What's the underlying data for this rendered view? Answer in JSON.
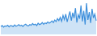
{
  "chart_data": {
    "type": "area",
    "color": "#3d8fdb",
    "ylim": [
      0,
      100
    ],
    "tick_labels": false,
    "grid": false,
    "values": [
      24,
      27,
      22,
      26,
      25,
      28,
      23,
      27,
      26,
      24,
      29,
      25,
      27,
      30,
      26,
      28,
      24,
      29,
      31,
      27,
      26,
      30,
      28,
      33,
      29,
      31,
      27,
      34,
      30,
      32,
      36,
      31,
      35,
      33,
      38,
      34,
      37,
      41,
      36,
      44,
      39,
      48,
      42,
      52,
      40,
      58,
      45,
      62,
      38,
      55,
      70,
      42,
      66,
      50,
      80,
      36,
      60,
      48,
      88,
      40,
      72,
      30,
      95,
      44,
      68,
      35,
      78,
      50,
      62,
      42
    ]
  }
}
